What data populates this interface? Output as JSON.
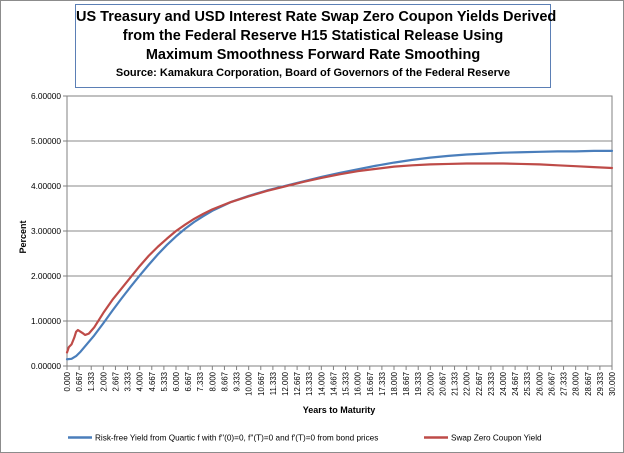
{
  "chart_data": {
    "type": "line",
    "title": [
      "US Treasury and USD Interest Rate Swap Zero Coupon Yields Derived",
      "from the Federal Reserve H15 Statistical Release Using",
      "Maximum Smoothness Forward Rate Smoothing"
    ],
    "subtitle": "Source: Kamakura Corporation, Board of Governors of the Federal Reserve",
    "xlabel": "Years to Maturity",
    "ylabel": "Percent",
    "xlim": [
      0,
      30
    ],
    "ylim": [
      0,
      6
    ],
    "grid": true,
    "legend_position": "bottom",
    "y_ticks": [
      "0.00000",
      "1.00000",
      "2.00000",
      "3.00000",
      "4.00000",
      "5.00000",
      "6.00000"
    ],
    "x_ticks": [
      "0.000",
      "0.667",
      "1.333",
      "2.000",
      "2.667",
      "3.333",
      "4.000",
      "4.667",
      "5.333",
      "6.000",
      "6.667",
      "7.333",
      "8.000",
      "8.667",
      "9.333",
      "10.000",
      "10.667",
      "11.333",
      "12.000",
      "12.667",
      "13.333",
      "14.000",
      "14.667",
      "15.333",
      "16.000",
      "16.667",
      "17.333",
      "18.000",
      "18.667",
      "19.333",
      "20.000",
      "20.667",
      "21.333",
      "22.000",
      "22.667",
      "23.333",
      "24.000",
      "24.667",
      "25.333",
      "26.000",
      "26.667",
      "27.333",
      "28.000",
      "28.667",
      "29.333",
      "30.000"
    ],
    "series": [
      {
        "name": "Risk-free Yield from Quartic f with f''(0)=0, f''(T)=0 and f'(T)=0 from bond prices",
        "color": "#4a7ebb",
        "x": [
          0,
          0.25,
          0.5,
          0.75,
          1,
          1.5,
          2,
          2.5,
          3,
          3.5,
          4,
          4.5,
          5,
          5.5,
          6,
          6.5,
          7,
          7.5,
          8,
          9,
          10,
          11,
          12,
          13,
          14,
          15,
          16,
          17,
          18,
          19,
          20,
          21,
          22,
          23,
          24,
          25,
          26,
          27,
          28,
          29,
          30
        ],
        "y": [
          0.15,
          0.16,
          0.22,
          0.32,
          0.44,
          0.68,
          0.95,
          1.23,
          1.5,
          1.76,
          2.01,
          2.25,
          2.48,
          2.69,
          2.88,
          3.05,
          3.2,
          3.33,
          3.45,
          3.64,
          3.78,
          3.9,
          4.0,
          4.1,
          4.2,
          4.29,
          4.37,
          4.45,
          4.52,
          4.58,
          4.63,
          4.67,
          4.7,
          4.72,
          4.74,
          4.75,
          4.76,
          4.77,
          4.77,
          4.78,
          4.78
        ]
      },
      {
        "name": "Swap Zero Coupon Yield",
        "color": "#be4b48",
        "x": [
          0,
          0.1,
          0.25,
          0.4,
          0.5,
          0.6,
          0.75,
          0.9,
          1,
          1.2,
          1.5,
          2,
          2.5,
          3,
          3.5,
          4,
          4.5,
          5,
          5.5,
          6,
          6.5,
          7,
          7.5,
          8,
          9,
          10,
          11,
          12,
          13,
          14,
          15,
          16,
          17,
          18,
          19,
          20,
          21,
          22,
          23,
          24,
          25,
          26,
          27,
          28,
          29,
          30
        ],
        "y": [
          0.3,
          0.42,
          0.48,
          0.63,
          0.76,
          0.8,
          0.76,
          0.72,
          0.69,
          0.72,
          0.86,
          1.18,
          1.47,
          1.72,
          1.97,
          2.22,
          2.45,
          2.65,
          2.83,
          3.0,
          3.14,
          3.27,
          3.38,
          3.48,
          3.64,
          3.77,
          3.89,
          3.99,
          4.09,
          4.18,
          4.26,
          4.33,
          4.38,
          4.43,
          4.46,
          4.48,
          4.49,
          4.5,
          4.5,
          4.5,
          4.49,
          4.48,
          4.46,
          4.44,
          4.42,
          4.4
        ]
      }
    ]
  }
}
